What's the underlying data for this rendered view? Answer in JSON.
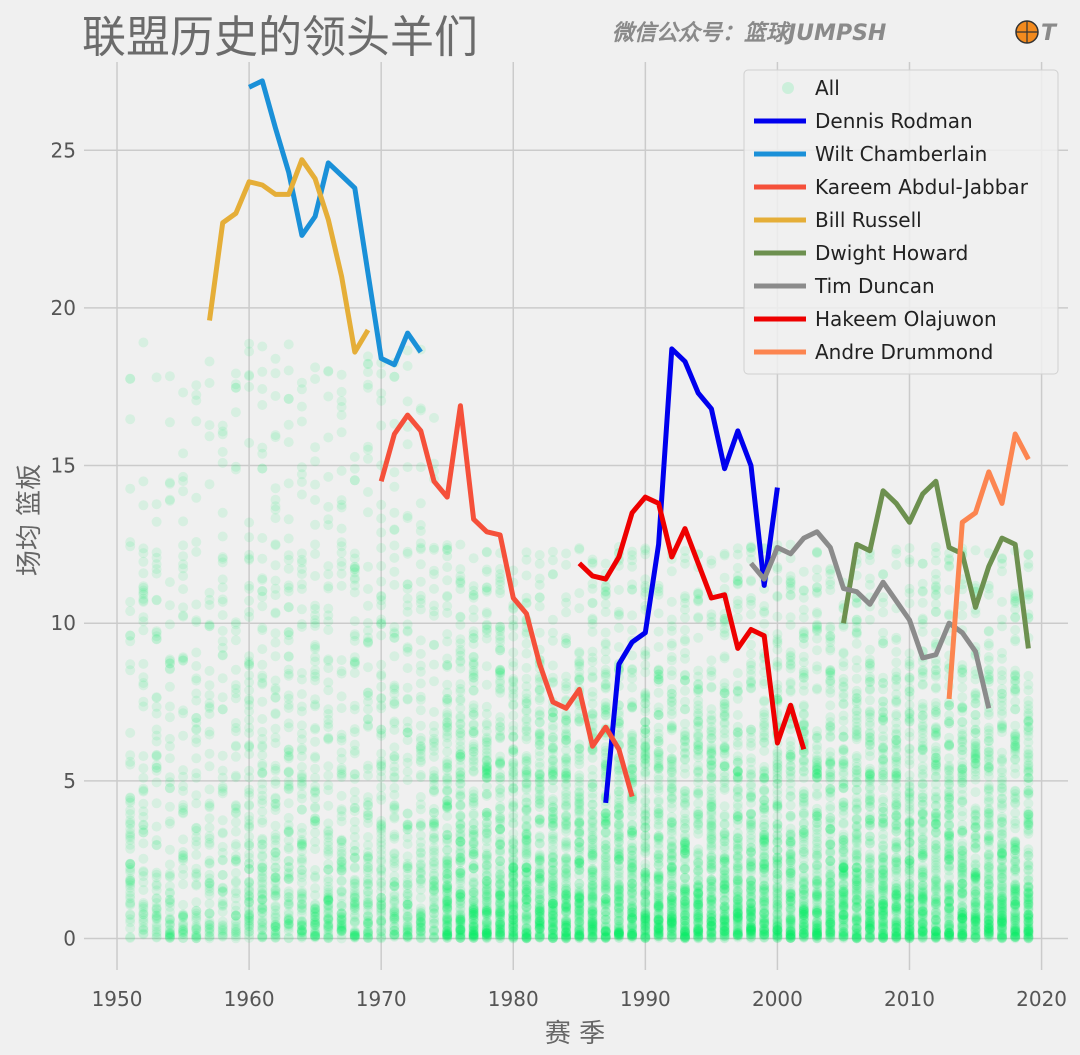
{
  "page": {
    "title": "联盟历史的领头羊们",
    "watermark": "微信公众号：篮球JUMPSH",
    "watermark_tail": "T"
  },
  "chart_data": {
    "type": "line",
    "title": "联盟历史的领头羊们",
    "xlabel": "赛  季",
    "ylabel": "场均 篮板",
    "xlim": [
      1947.5,
      2022
    ],
    "ylim": [
      -1,
      27.8
    ],
    "xticks": [
      1950,
      1960,
      1970,
      1980,
      1990,
      2000,
      2010,
      2020
    ],
    "yticks": [
      0,
      5,
      10,
      15,
      20,
      25
    ],
    "grid": true,
    "legend_position": "top-right",
    "scatter": {
      "name": "All",
      "color": "#00ee66",
      "description": "rebounds per game of all players by season (dense cloud, alpha ~0.1)"
    },
    "series": [
      {
        "name": "Dennis Rodman",
        "color": "#0000ee",
        "x": [
          1987,
          1988,
          1989,
          1990,
          1991,
          1992,
          1993,
          1994,
          1995,
          1996,
          1997,
          1998,
          1999,
          2000
        ],
        "y": [
          4.3,
          8.7,
          9.4,
          9.7,
          12.5,
          18.7,
          18.3,
          17.3,
          16.8,
          14.9,
          16.1,
          15.0,
          11.2,
          14.3
        ]
      },
      {
        "name": "Wilt Chamberlain",
        "color": "#1a90d8",
        "x": [
          1960,
          1961,
          1962,
          1963,
          1964,
          1965,
          1966,
          1967,
          1968,
          1969,
          1970,
          1971,
          1972,
          1973
        ],
        "y": [
          27.0,
          27.2,
          25.7,
          24.3,
          22.3,
          22.9,
          24.6,
          24.2,
          23.8,
          21.1,
          18.4,
          18.2,
          19.2,
          18.6
        ]
      },
      {
        "name": "Kareem Abdul-Jabbar",
        "color": "#f5503a",
        "x": [
          1970,
          1971,
          1972,
          1973,
          1974,
          1975,
          1976,
          1977,
          1978,
          1979,
          1980,
          1981,
          1982,
          1983,
          1984,
          1985,
          1986,
          1987,
          1988,
          1989
        ],
        "y": [
          14.5,
          16.0,
          16.6,
          16.1,
          14.5,
          14.0,
          16.9,
          13.3,
          12.9,
          12.8,
          10.8,
          10.3,
          8.7,
          7.5,
          7.3,
          7.9,
          6.1,
          6.7,
          6.0,
          4.5
        ]
      },
      {
        "name": "Bill Russell",
        "color": "#e5ae38",
        "x": [
          1957,
          1958,
          1959,
          1960,
          1961,
          1962,
          1963,
          1964,
          1965,
          1966,
          1967,
          1968,
          1969
        ],
        "y": [
          19.6,
          22.7,
          23.0,
          24.0,
          23.9,
          23.6,
          23.6,
          24.7,
          24.1,
          22.8,
          21.0,
          18.6,
          19.3
        ]
      },
      {
        "name": "Dwight Howard",
        "color": "#6d904f",
        "x": [
          2005,
          2006,
          2007,
          2008,
          2009,
          2010,
          2011,
          2012,
          2013,
          2014,
          2015,
          2016,
          2017,
          2018,
          2019
        ],
        "y": [
          10.0,
          12.5,
          12.3,
          14.2,
          13.8,
          13.2,
          14.1,
          14.5,
          12.4,
          12.2,
          10.5,
          11.8,
          12.7,
          12.5,
          9.2
        ]
      },
      {
        "name": "Tim Duncan",
        "color": "#8b8b8b",
        "x": [
          1998,
          1999,
          2000,
          2001,
          2002,
          2003,
          2004,
          2005,
          2006,
          2007,
          2008,
          2009,
          2010,
          2011,
          2012,
          2013,
          2014,
          2015,
          2016
        ],
        "y": [
          11.9,
          11.4,
          12.4,
          12.2,
          12.7,
          12.9,
          12.4,
          11.1,
          11.0,
          10.6,
          11.3,
          10.7,
          10.1,
          8.9,
          9.0,
          10.0,
          9.7,
          9.1,
          7.3
        ]
      },
      {
        "name": "Hakeem Olajuwon",
        "color": "#ee0000",
        "x": [
          1985,
          1986,
          1987,
          1988,
          1989,
          1990,
          1991,
          1992,
          1993,
          1994,
          1995,
          1996,
          1997,
          1998,
          1999,
          2000,
          2001,
          2002
        ],
        "y": [
          11.9,
          11.5,
          11.4,
          12.1,
          13.5,
          14.0,
          13.8,
          12.1,
          13.0,
          11.9,
          10.8,
          10.9,
          9.2,
          9.8,
          9.6,
          6.2,
          7.4,
          6.0
        ]
      },
      {
        "name": "Andre Drummond",
        "color": "#fc8550",
        "x": [
          2013,
          2014,
          2015,
          2016,
          2017,
          2018,
          2019
        ],
        "y": [
          7.6,
          13.2,
          13.5,
          14.8,
          13.8,
          16.0,
          15.2
        ]
      }
    ]
  }
}
